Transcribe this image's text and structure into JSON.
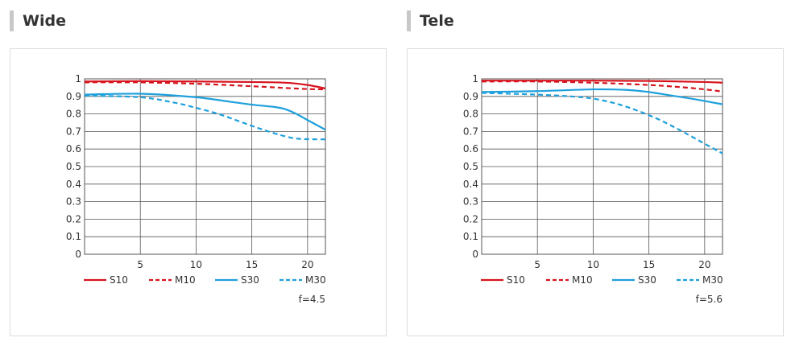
{
  "panels": [
    {
      "title": "Wide",
      "fnumber": "f=4.5"
    },
    {
      "title": "Tele",
      "fnumber": "f=5.6"
    }
  ],
  "colors": {
    "red": "#d7141e",
    "blue": "#1ea0dc",
    "grid": "#555555",
    "heading_bar": "#c8c8c8"
  },
  "chart_data": [
    {
      "type": "line",
      "title": "Wide",
      "annotation": "f=4.5",
      "xlim": [
        0,
        21.6
      ],
      "ylim": [
        0,
        1
      ],
      "x_ticks": [
        5,
        10,
        15,
        20
      ],
      "y_ticks": [
        0,
        0.1,
        0.2,
        0.3,
        0.4,
        0.5,
        0.6,
        0.7,
        0.8,
        0.9,
        1
      ],
      "y_tick_labels": [
        "0",
        "0.1",
        "0.2",
        "0.3",
        "0.4",
        "0.5",
        "0.6",
        "0.7",
        "0.8",
        "0.9",
        "1"
      ],
      "grid": true,
      "legend_position": "bottom",
      "series": [
        {
          "name": "S10",
          "color": "#d7141e",
          "dash": "solid",
          "x": [
            0,
            5,
            10,
            15,
            18,
            20,
            21.6
          ],
          "y": [
            0.985,
            0.987,
            0.985,
            0.982,
            0.978,
            0.965,
            0.945
          ]
        },
        {
          "name": "M10",
          "color": "#d7141e",
          "dash": "dashed",
          "x": [
            0,
            5,
            10,
            15,
            18,
            20,
            21.6
          ],
          "y": [
            0.98,
            0.98,
            0.972,
            0.958,
            0.948,
            0.942,
            0.94
          ]
        },
        {
          "name": "S30",
          "color": "#1ea0dc",
          "dash": "solid",
          "x": [
            0,
            5,
            10,
            13,
            15,
            17,
            18,
            19,
            20,
            21.6
          ],
          "y": [
            0.91,
            0.915,
            0.895,
            0.87,
            0.853,
            0.84,
            0.827,
            0.8,
            0.765,
            0.71
          ]
        },
        {
          "name": "M30",
          "color": "#1ea0dc",
          "dash": "dashed",
          "x": [
            0,
            5,
            8,
            10,
            12,
            14,
            16,
            18,
            19,
            20,
            21.6
          ],
          "y": [
            0.905,
            0.895,
            0.865,
            0.835,
            0.8,
            0.755,
            0.71,
            0.672,
            0.66,
            0.656,
            0.655
          ]
        }
      ]
    },
    {
      "type": "line",
      "title": "Tele",
      "annotation": "f=5.6",
      "xlim": [
        0,
        21.6
      ],
      "ylim": [
        0,
        1
      ],
      "x_ticks": [
        5,
        10,
        15,
        20
      ],
      "y_ticks": [
        0,
        0.1,
        0.2,
        0.3,
        0.4,
        0.5,
        0.6,
        0.7,
        0.8,
        0.9,
        1
      ],
      "y_tick_labels": [
        "0",
        "0.1",
        "0.2",
        "0.3",
        "0.4",
        "0.5",
        "0.6",
        "0.7",
        "0.8",
        "0.9",
        "1"
      ],
      "grid": true,
      "legend_position": "bottom",
      "series": [
        {
          "name": "S10",
          "color": "#d7141e",
          "dash": "solid",
          "x": [
            0,
            5,
            10,
            15,
            20,
            21.6
          ],
          "y": [
            0.99,
            0.99,
            0.99,
            0.988,
            0.982,
            0.978
          ]
        },
        {
          "name": "M10",
          "color": "#d7141e",
          "dash": "dashed",
          "x": [
            0,
            5,
            10,
            15,
            18,
            20,
            21.6
          ],
          "y": [
            0.985,
            0.985,
            0.978,
            0.965,
            0.952,
            0.94,
            0.928
          ]
        },
        {
          "name": "S30",
          "color": "#1ea0dc",
          "dash": "solid",
          "x": [
            0,
            5,
            10,
            13,
            15,
            17,
            19,
            21.6
          ],
          "y": [
            0.925,
            0.93,
            0.94,
            0.937,
            0.925,
            0.905,
            0.885,
            0.855
          ]
        },
        {
          "name": "M30",
          "color": "#1ea0dc",
          "dash": "dashed",
          "x": [
            0,
            5,
            8,
            10,
            12,
            14,
            16,
            18,
            20,
            21.6
          ],
          "y": [
            0.92,
            0.91,
            0.9,
            0.887,
            0.86,
            0.818,
            0.765,
            0.7,
            0.63,
            0.575
          ]
        }
      ]
    }
  ]
}
